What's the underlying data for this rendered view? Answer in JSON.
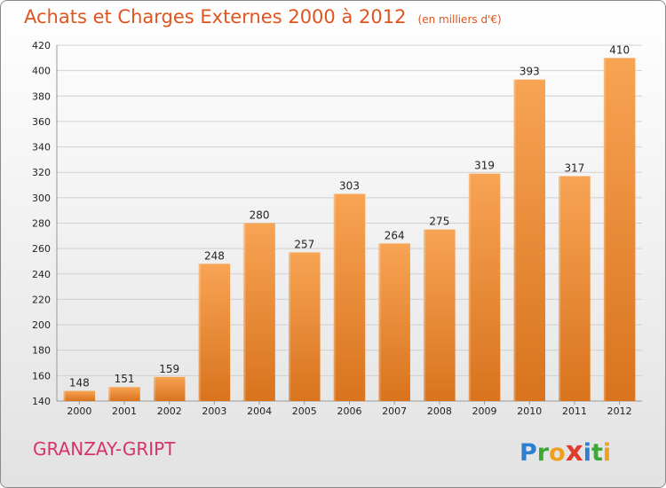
{
  "title": "Achats et Charges Externes 2000 à 2012",
  "subtitle": "(en milliers d'€)",
  "place": "GRANZAY-GRIPT",
  "logo_text": "Proxiti",
  "colors": {
    "bar_top": "#f7a454",
    "bar_bottom": "#d9731d",
    "title": "#e0541f",
    "place": "#d6336c",
    "grid": "#d0d0d0"
  },
  "chart_data": {
    "type": "bar",
    "title": "Achats et Charges Externes 2000 à 2012",
    "subtitle": "(en milliers d'€)",
    "categories": [
      "2000",
      "2001",
      "2002",
      "2003",
      "2004",
      "2005",
      "2006",
      "2007",
      "2008",
      "2009",
      "2010",
      "2011",
      "2012"
    ],
    "values": [
      148,
      151,
      159,
      248,
      280,
      257,
      303,
      264,
      275,
      319,
      393,
      317,
      410
    ],
    "ylim": [
      140,
      420
    ],
    "yticks": [
      140,
      160,
      180,
      200,
      220,
      240,
      260,
      280,
      300,
      320,
      340,
      360,
      380,
      400,
      420
    ],
    "grid": true,
    "data_labels": true
  }
}
